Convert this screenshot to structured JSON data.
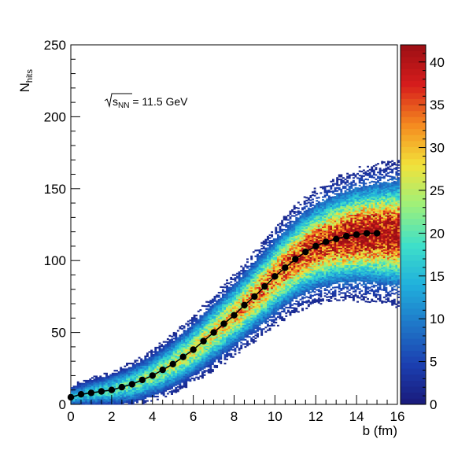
{
  "chart_data": {
    "type": "heatmap",
    "xlabel": "b (fm)",
    "ylabel_main": "N",
    "ylabel_sub": "hits",
    "annotation": {
      "sqrt_symbol": "√",
      "s_main": "s",
      "s_sub": "NN",
      "value": " = 11.5 GeV"
    },
    "xlim": [
      0,
      16
    ],
    "ylim": [
      0,
      250
    ],
    "x_ticks": [
      "0",
      "2",
      "4",
      "6",
      "8",
      "10",
      "12",
      "14",
      "16"
    ],
    "y_ticks": [
      "0",
      "50",
      "100",
      "150",
      "200",
      "250"
    ],
    "colorbar": {
      "range": [
        0,
        42
      ],
      "ticks": [
        "0",
        "5",
        "10",
        "15",
        "20",
        "25",
        "30",
        "35",
        "40"
      ],
      "colors": [
        "#1a1a7a",
        "#1b3fb0",
        "#1f77c8",
        "#20b0dc",
        "#3fe0c8",
        "#9ef07a",
        "#f2e23a",
        "#f58a1f",
        "#d61c1c",
        "#9c0f14"
      ]
    },
    "profile": {
      "x": [
        0.0,
        0.5,
        1.0,
        1.5,
        2.0,
        2.5,
        3.0,
        3.5,
        4.0,
        4.5,
        5.0,
        5.5,
        6.0,
        6.5,
        7.0,
        7.5,
        8.0,
        8.5,
        9.0,
        9.5,
        10.0,
        10.5,
        11.0,
        11.5,
        12.0,
        12.5,
        13.0,
        13.5,
        14.0,
        14.5,
        15.0
      ],
      "y": [
        5,
        7,
        8,
        9,
        10,
        12,
        14,
        17,
        20,
        24,
        28,
        33,
        38,
        44,
        50,
        56,
        62,
        69,
        75,
        82,
        89,
        95,
        101,
        106,
        110,
        113,
        115,
        117,
        118,
        119,
        119
      ],
      "color": "#000000"
    },
    "band": {
      "center_x": [
        0,
        1,
        2,
        3,
        4,
        5,
        6,
        7,
        8,
        9,
        10,
        11,
        12,
        13,
        14,
        15,
        16
      ],
      "center_y": [
        5,
        8,
        10,
        14,
        20,
        28,
        38,
        50,
        62,
        75,
        89,
        101,
        110,
        115,
        118,
        119,
        119
      ],
      "half_width": [
        4,
        5,
        6,
        7,
        8,
        9,
        10,
        11,
        12,
        13,
        14,
        15,
        16,
        17,
        18,
        19,
        20
      ],
      "peak_count": 42
    }
  }
}
